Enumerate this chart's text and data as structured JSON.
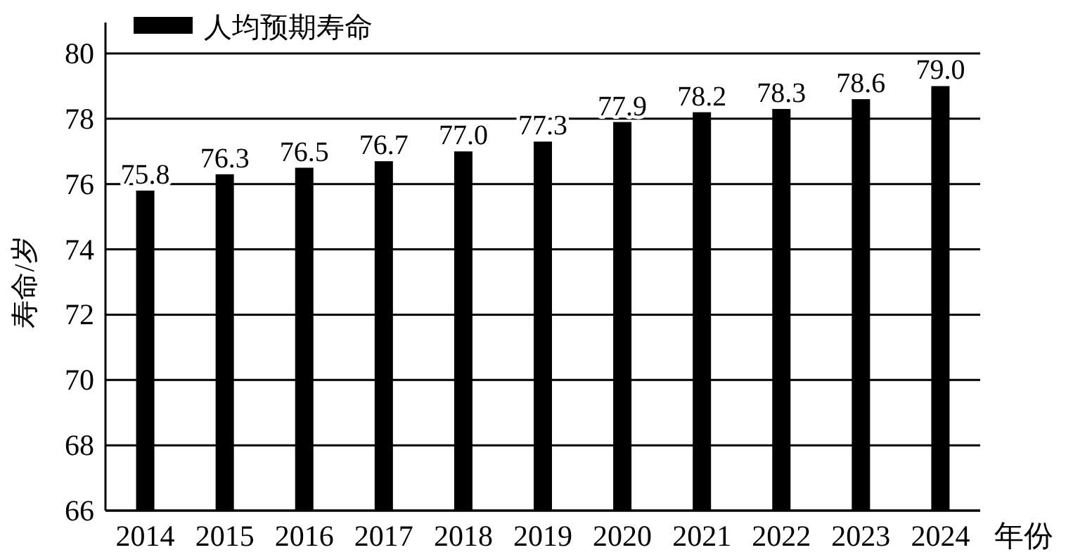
{
  "chart_data": {
    "type": "bar",
    "xlabel": "年份",
    "ylabel": "寿命/岁",
    "categories": [
      "2014",
      "2015",
      "2016",
      "2017",
      "2018",
      "2019",
      "2020",
      "2021",
      "2022",
      "2023",
      "2024"
    ],
    "series": [
      {
        "name": "人均预期寿命",
        "color": "#000000",
        "values": [
          75.8,
          76.3,
          76.5,
          76.7,
          77.0,
          77.3,
          77.9,
          78.2,
          78.3,
          78.6,
          79.0
        ],
        "value_labels": [
          "75.8",
          "76.3",
          "76.5",
          "76.7",
          "77.0",
          "77.3",
          "77.9",
          "78.2",
          "78.3",
          "78.6",
          "79.0"
        ]
      }
    ],
    "ylim": [
      66,
      80
    ],
    "yticks": [
      66,
      68,
      70,
      72,
      74,
      76,
      78,
      80
    ],
    "grid": "y",
    "legend": "top left"
  }
}
